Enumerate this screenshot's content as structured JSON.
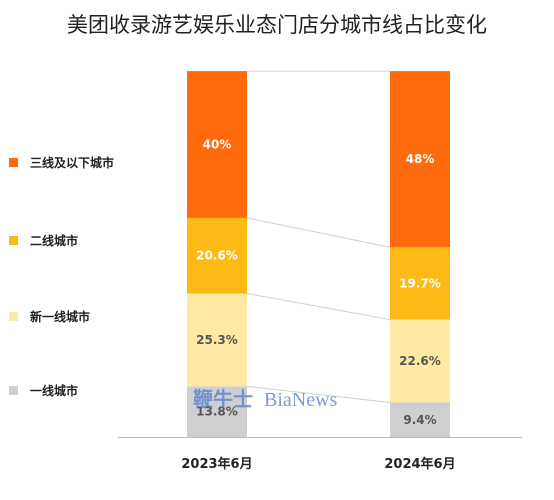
{
  "chart_data": {
    "type": "bar",
    "stacked": true,
    "normalized": true,
    "title": "美团收录游艺娱乐业态门店分城市线占比变化",
    "categories": [
      "2023年6月",
      "2024年6月"
    ],
    "series": [
      {
        "name": "一线城市",
        "values": [
          13.8,
          9.4
        ],
        "labels": [
          "13.8%",
          "9.4%"
        ],
        "color": "#CFCFCF",
        "text_color": "#555555"
      },
      {
        "name": "新一线城市",
        "values": [
          25.3,
          22.6
        ],
        "labels": [
          "25.3%",
          "22.6%"
        ],
        "color": "#FDE9A2",
        "text_color": "#555555"
      },
      {
        "name": "二线城市",
        "values": [
          20.6,
          19.7
        ],
        "labels": [
          "20.6%",
          "19.7%"
        ],
        "color": "#FDBA17",
        "text_color": "#ffffff"
      },
      {
        "name": "三线及以下城市",
        "values": [
          40,
          48
        ],
        "labels": [
          "40%",
          "48%"
        ],
        "color": "#FF6A0D",
        "text_color": "#ffffff"
      }
    ],
    "ylim": [
      0,
      100
    ],
    "grid": false,
    "legend_position": "left",
    "connector_lines": true
  },
  "watermark": {
    "cn": "鞭牛士",
    "en": "BiaNews"
  },
  "colors": {
    "axis": "#bdbdbd",
    "connector": "#cfcfcf"
  }
}
